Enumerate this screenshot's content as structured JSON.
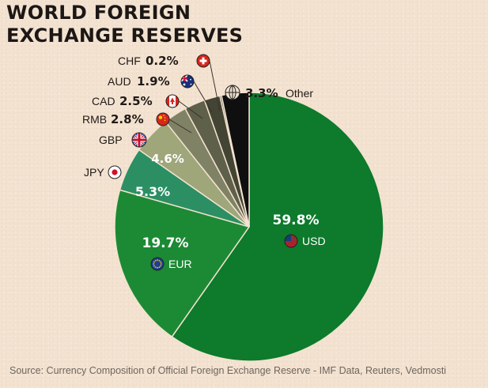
{
  "title_lines": [
    "WORLD FOREIGN",
    "EXCHANGE RESERVES"
  ],
  "source": "Source: Currency Composition of Official Foreign Exchange Reserve - IMF Data, Reuters, Vedmosti",
  "chart_data": {
    "type": "pie",
    "title": "WORLD FOREIGN EXCHANGE RESERVES",
    "slices": [
      {
        "label": "USD",
        "value": 59.8,
        "value_label": "59.8%",
        "color": "#0d7a2c",
        "icon": "us-flag-icon"
      },
      {
        "label": "EUR",
        "value": 19.7,
        "value_label": "19.7%",
        "color": "#1c8a34",
        "icon": "eu-flag-icon"
      },
      {
        "label": "JPY",
        "value": 5.3,
        "value_label": "5.3%",
        "color": "#2c8f63",
        "icon": "japan-flag-icon"
      },
      {
        "label": "GBP",
        "value": 4.6,
        "value_label": "4.6%",
        "color": "#9ea67a",
        "icon": "uk-flag-icon"
      },
      {
        "label": "RMB",
        "value": 2.8,
        "value_label": "2.8%",
        "color": "#7f8265",
        "icon": "china-flag-icon"
      },
      {
        "label": "CAD",
        "value": 2.5,
        "value_label": "2.5%",
        "color": "#5f604a",
        "icon": "canada-flag-icon"
      },
      {
        "label": "AUD",
        "value": 1.9,
        "value_label": "1.9%",
        "color": "#434434",
        "icon": "australia-flag-icon"
      },
      {
        "label": "CHF",
        "value": 0.2,
        "value_label": "0.2%",
        "color": "#2c2c24",
        "icon": "switzerland-flag-icon"
      },
      {
        "label": "Other",
        "value": 3.3,
        "value_label": "3.3%",
        "color": "#0f0f0f",
        "icon": "globe-icon"
      }
    ]
  }
}
